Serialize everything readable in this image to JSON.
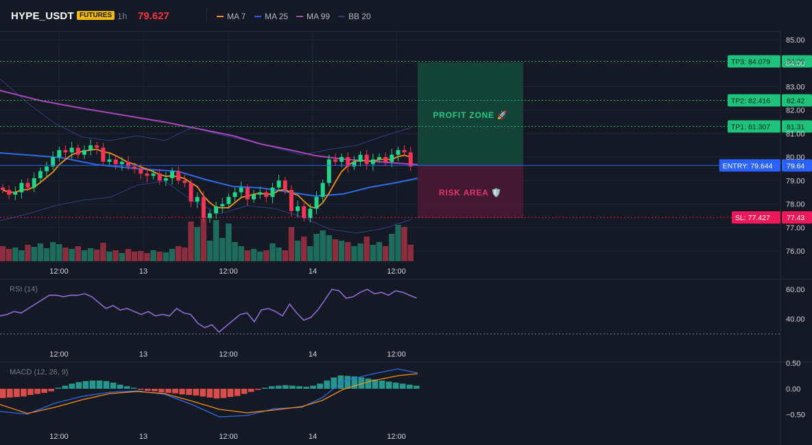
{
  "header": {
    "symbol": "HYPE_USDT",
    "badge": "FUTURES",
    "timeframe": "1h",
    "last_price": "79.627",
    "legend": [
      {
        "label": "MA 7",
        "color": "#f7931a"
      },
      {
        "label": "MA 25",
        "color": "#2962ff"
      },
      {
        "label": "MA 99",
        "color": "#ab47bc"
      },
      {
        "label": "BB 20",
        "color": "#1e3a8a"
      }
    ]
  },
  "price_axis": {
    "ticks": [
      "85.00",
      "84.00",
      "83.00",
      "82.00",
      "81.00",
      "80.00",
      "79.00",
      "78.00",
      "77.00",
      "76.00"
    ],
    "tick_values": [
      85,
      84,
      83,
      82,
      81,
      80,
      79,
      78,
      77,
      76
    ]
  },
  "time_axis": {
    "labels": [
      "12:00",
      "13",
      "12:00",
      "14",
      "12:00"
    ]
  },
  "levels": {
    "tp3": {
      "tag": "TP3: 84.079",
      "axis": "84.08",
      "value": 84.079
    },
    "tp2": {
      "tag": "TP2: 82.416",
      "axis": "82.42",
      "value": 82.416
    },
    "tp1": {
      "tag": "TP1: 81.307",
      "axis": "81.31",
      "value": 81.307
    },
    "entry": {
      "tag": "ENTRY: 79.644",
      "axis": "79.64",
      "value": 79.644
    },
    "sl": {
      "tag": "SL: 77.427",
      "axis": "77.43",
      "value": 77.427
    }
  },
  "zones": {
    "profit_label": "PROFIT ZONE 🚀",
    "risk_label": "RISK AREA 🛡️"
  },
  "rsi": {
    "title": "RSI (14)",
    "ticks": [
      "60.00",
      "40.00"
    ],
    "tick_values": [
      60,
      40
    ]
  },
  "macd": {
    "title": "MACD (12, 26, 9)",
    "ticks": [
      "0.50",
      "0.00",
      "−0.50"
    ],
    "tick_values": [
      0.5,
      0,
      -0.5
    ]
  },
  "colors": {
    "up": "#22d38a",
    "down": "#f23658",
    "background": "#151924",
    "entry": "#2962ff",
    "tp": "#1ec27a",
    "sl": "#f0185a"
  }
}
